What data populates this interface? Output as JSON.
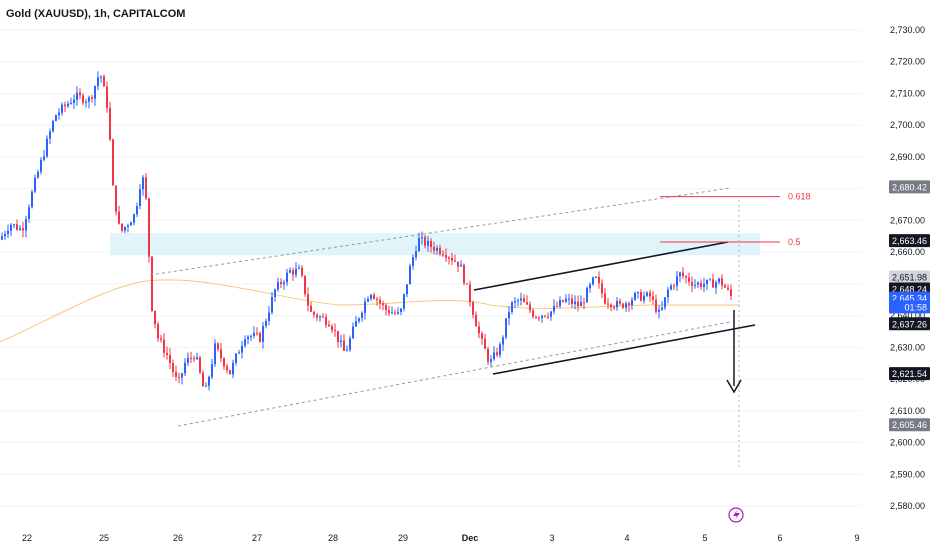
{
  "header": {
    "title": "Gold (XAUUSD), 1h, CAPITALCOM"
  },
  "chart_data": {
    "type": "candlestick",
    "ylim": [
      2577,
      2735
    ],
    "y_ticks": [
      "2,730.00",
      "2,720.00",
      "2,710.00",
      "2,700.00",
      "2,690.00",
      "2,680.00",
      "2,670.00",
      "2,660.00",
      "2,650.00",
      "2,640.00",
      "2,630.00",
      "2,620.00",
      "2,610.00",
      "2,600.00",
      "2,590.00",
      "2,580.00"
    ],
    "y_tick_values": [
      2730,
      2720,
      2710,
      2700,
      2690,
      2680,
      2670,
      2660,
      2650,
      2640,
      2630,
      2620,
      2610,
      2600,
      2590,
      2580
    ],
    "x_ticks": [
      "22",
      "25",
      "26",
      "27",
      "28",
      "29",
      "Dec",
      "3",
      "4",
      "5",
      "6",
      "9"
    ],
    "price_labels": [
      {
        "text": "2,680.42",
        "value": 2680.42,
        "style": "gray"
      },
      {
        "text": "2,663.46",
        "value": 2663.46,
        "style": "black"
      },
      {
        "text": "2,651.98",
        "value": 2651.98,
        "style": "lightgray"
      },
      {
        "text": "2,648.24",
        "value": 2648.24,
        "style": "black"
      },
      {
        "text": "2,645.34",
        "value": 2645.34,
        "style": "blue"
      },
      {
        "text": "01:58",
        "value": 2642.6,
        "style": "blue-sub"
      },
      {
        "text": "2,637.26",
        "value": 2637.26,
        "style": "black"
      },
      {
        "text": "2,621.54",
        "value": 2621.54,
        "style": "black"
      },
      {
        "text": "2,605.46",
        "value": 2605.46,
        "style": "gray"
      }
    ],
    "fib_levels": [
      {
        "label": "0.618",
        "value": 2677.5
      },
      {
        "label": "0.5",
        "value": 2663.2
      }
    ],
    "zone": {
      "from": 2659,
      "to": 2666
    },
    "colors": {
      "up": "#2962ff",
      "down": "#f23645",
      "ma": "#f5c97a",
      "fib": "#f23645",
      "zone": "#e0f4f9",
      "grid": "#f0f3fa",
      "axis_text": "#131722"
    }
  }
}
